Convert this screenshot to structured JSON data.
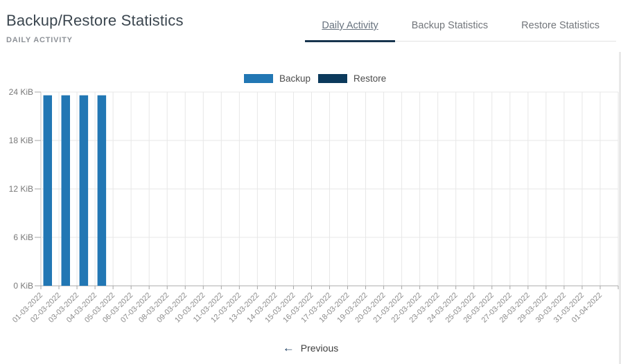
{
  "header": {
    "title": "Backup/Restore Statistics",
    "subtitle": "DAILY ACTIVITY"
  },
  "tabs": {
    "items": [
      {
        "label": "Daily Activity",
        "active": true
      },
      {
        "label": "Backup Statistics",
        "active": false
      },
      {
        "label": "Restore Statistics",
        "active": false
      }
    ]
  },
  "footer": {
    "previous_label": "Previous",
    "previous_icon": "←"
  },
  "colors": {
    "accent_navy": "#17344e",
    "backup_blue": "#2277b4",
    "restore_navy": "#0c3a5c",
    "grid": "#e7e7e7",
    "bottom_axis": "#ababab",
    "left_axis": "#c6c6c6",
    "tick": "#a5a5a5",
    "y_label": "#787878",
    "x_label": "#8b8b8b"
  },
  "chart_data": {
    "type": "bar",
    "title": "Daily Activity",
    "xlabel": "",
    "ylabel": "",
    "unit": "KiB",
    "ylim": [
      0,
      24
    ],
    "y_ticks": [
      0,
      6,
      12,
      18,
      24
    ],
    "y_tick_labels": [
      "0 KiB",
      "6 KiB",
      "12 KiB",
      "18 KiB",
      "24 KiB"
    ],
    "grid": true,
    "legend_position": "top",
    "categories": [
      "01-03-2022",
      "02-03-2022",
      "03-03-2022",
      "04-03-2022",
      "05-03-2022",
      "06-03-2022",
      "07-03-2022",
      "08-03-2022",
      "09-03-2022",
      "10-03-2022",
      "11-03-2022",
      "12-03-2022",
      "13-03-2022",
      "14-03-2022",
      "15-03-2022",
      "16-03-2022",
      "17-03-2022",
      "18-03-2022",
      "19-03-2022",
      "20-03-2022",
      "21-03-2022",
      "22-03-2022",
      "23-03-2022",
      "24-03-2022",
      "25-03-2022",
      "26-03-2022",
      "27-03-2022",
      "28-03-2022",
      "29-03-2022",
      "30-03-2022",
      "31-03-2022",
      "01-04-2022"
    ],
    "series": [
      {
        "name": "Backup",
        "color": "#2277b4",
        "values": [
          23.6,
          23.6,
          23.6,
          23.6,
          0,
          0,
          0,
          0,
          0,
          0,
          0,
          0,
          0,
          0,
          0,
          0,
          0,
          0,
          0,
          0,
          0,
          0,
          0,
          0,
          0,
          0,
          0,
          0,
          0,
          0,
          0,
          0
        ]
      },
      {
        "name": "Restore",
        "color": "#0c3a5c",
        "values": [
          0,
          0,
          0,
          0,
          0,
          0,
          0,
          0,
          0,
          0,
          0,
          0,
          0,
          0,
          0,
          0,
          0,
          0,
          0,
          0,
          0,
          0,
          0,
          0,
          0,
          0,
          0,
          0,
          0,
          0,
          0,
          0
        ]
      }
    ]
  }
}
